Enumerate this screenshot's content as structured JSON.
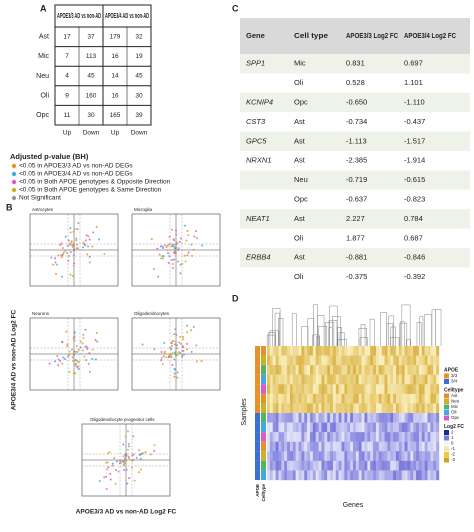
{
  "panel_a": {
    "letter": "A",
    "col_groups": [
      "APOE3/3 AD vs non-AD",
      "APOE3/4 AD vs non-AD"
    ],
    "sub_headers": [
      "Up",
      "Down",
      "Up",
      "Down"
    ],
    "rows": [
      {
        "label": "Ast",
        "cells": [
          17,
          37,
          179,
          32
        ]
      },
      {
        "label": "Mic",
        "cells": [
          7,
          113,
          16,
          19
        ]
      },
      {
        "label": "Neu",
        "cells": [
          4,
          45,
          14,
          45
        ]
      },
      {
        "label": "Oli",
        "cells": [
          9,
          160,
          16,
          30
        ]
      },
      {
        "label": "Opc",
        "cells": [
          11,
          30,
          165,
          39
        ]
      }
    ]
  },
  "legend": {
    "title": "Adjusted p-value (BH)",
    "items": [
      {
        "label": "<0.05 in APOE3/3 AD vs non-AD DEGs",
        "color": "#e8902a"
      },
      {
        "label": "<0.05 in APOE3/4 AD vs non-AD DEGs",
        "color": "#3fa9e0"
      },
      {
        "label": "<0.05 in Both APOE genotypes & Opposite Direction",
        "color": "#d95bc7"
      },
      {
        "label": "<0.05 in Both APOE genotypes & Same Direction",
        "color": "#c9b12a"
      },
      {
        "label": "Not Significant",
        "color": "#9a9a9a"
      }
    ]
  },
  "panel_b": {
    "letter": "B",
    "y_label": "APOE3/4 AD vs non-AD Log2 FC",
    "x_label": "APOE3/3 AD vs non-AD Log2 FC",
    "plots": [
      "Astrocytes",
      "Microglia",
      "Neurons",
      "Oligodendrocytes",
      "Oligodendrocyte progenitor cells"
    ]
  },
  "panel_c": {
    "letter": "C",
    "headers": [
      "Gene",
      "Cell type",
      "APOE3/3 Log2 FC",
      "APOE3/4 Log2 FC"
    ],
    "rows": [
      [
        "SPP1",
        "Mic",
        "0.831",
        "0.697"
      ],
      [
        null,
        "Oli",
        "0.528",
        "1.101"
      ],
      [
        "KCNIP4",
        "Opc",
        "-0.650",
        "-1.110"
      ],
      [
        "CST3",
        "Ast",
        "-0.734",
        "-0.437"
      ],
      [
        "GPC5",
        "Ast",
        "-1.113",
        "-1.517"
      ],
      [
        "NRXN1",
        "Ast",
        "-2.385",
        "-1.914"
      ],
      [
        null,
        "Neu",
        "-0.719",
        "-0.615"
      ],
      [
        null,
        "Opc",
        "-0.637",
        "-0.823"
      ],
      [
        "NEAT1",
        "Ast",
        "2.227",
        "0.784"
      ],
      [
        null,
        "Oli",
        "1.877",
        "0.687"
      ],
      [
        "ERBB4",
        "Ast",
        "-0.881",
        "-0.846"
      ],
      [
        null,
        "Oli",
        "-0.375",
        "-0.392"
      ]
    ]
  },
  "panel_d": {
    "letter": "D",
    "y_label": "Samples",
    "x_label": "Genes",
    "bar_labels": [
      "APOE",
      "Celltype"
    ],
    "legend": [
      {
        "title": "APOE",
        "items": [
          {
            "label": "3/3",
            "color": "#e8902a"
          },
          {
            "label": "3/4",
            "color": "#3b6fd4"
          }
        ]
      },
      {
        "title": "Celltype",
        "items": [
          {
            "label": "Ast",
            "color": "#e8902a"
          },
          {
            "label": "Neu",
            "color": "#c9b12a"
          },
          {
            "label": "Mic",
            "color": "#4fb36a"
          },
          {
            "label": "Oli",
            "color": "#3fa9e0"
          },
          {
            "label": "Opc",
            "color": "#d95bc7"
          }
        ]
      },
      {
        "title": "Log2 FC",
        "items": [
          {
            "label": "2"
          },
          {
            "label": "1"
          },
          {
            "label": "0"
          },
          {
            "label": "-1"
          },
          {
            "label": "-2"
          },
          {
            "label": "-3"
          }
        ]
      }
    ]
  }
}
